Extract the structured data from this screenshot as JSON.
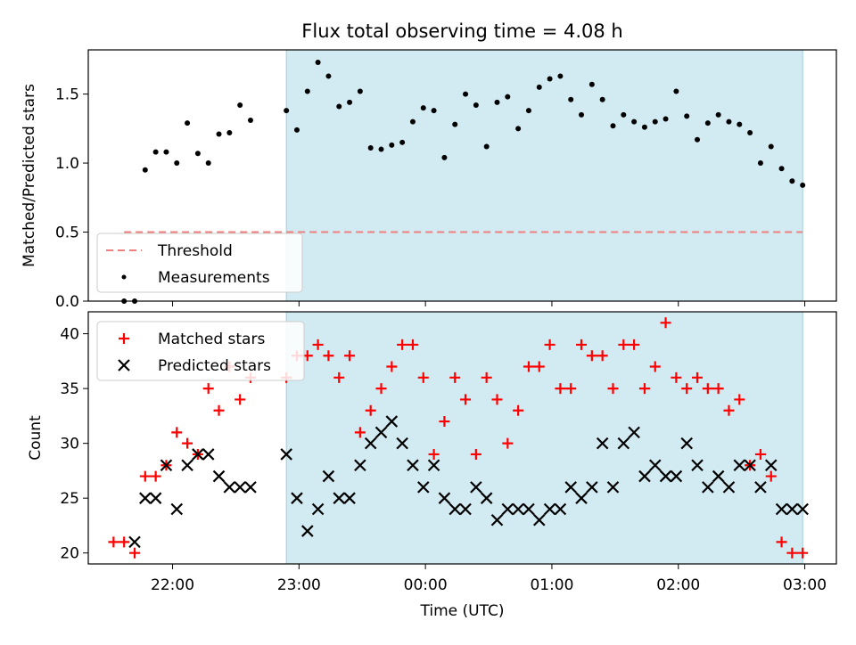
{
  "figure": {
    "title": "Flux total observing time = 4.08 h",
    "shade_color": "#add8e6",
    "shade_range": [
      "22:54",
      "02:59"
    ]
  },
  "chart_data": [
    {
      "type": "scatter",
      "xaxis": {
        "kind": "time",
        "range": [
          "21:20",
          "03:15"
        ],
        "ticks": [
          "22:00",
          "23:00",
          "00:00",
          "01:00",
          "02:00",
          "03:00"
        ],
        "ticklabels_visible": false
      },
      "ylabel": "Matched/Predicted stars",
      "ylim": [
        0,
        1.82
      ],
      "yticks": [
        0.0,
        0.5,
        1.0,
        1.5
      ],
      "ytick_labels": [
        "0.0",
        "0.5",
        "1.0",
        "1.5"
      ],
      "legend": {
        "placement": "lower-left",
        "entries": [
          {
            "label": "Threshold",
            "kind": "dashed-line",
            "color": "#f08080"
          },
          {
            "label": "Measurements",
            "kind": "dot",
            "color": "#000000"
          }
        ]
      },
      "series": [
        {
          "name": "Threshold",
          "kind": "hline",
          "y": 0.5,
          "x_range": [
            "21:37",
            "02:59"
          ],
          "color": "#f08080"
        },
        {
          "name": "Measurements",
          "kind": "dot",
          "color": "#000000",
          "x": [
            "21:37",
            "21:42",
            "21:47",
            "21:52",
            "21:57",
            "22:02",
            "22:07",
            "22:12",
            "22:17",
            "22:22",
            "22:27",
            "22:32",
            "22:37",
            "22:54",
            "22:59",
            "23:04",
            "23:09",
            "23:14",
            "23:19",
            "23:24",
            "23:29",
            "23:34",
            "23:39",
            "23:44",
            "23:49",
            "23:54",
            "23:59",
            "00:04",
            "00:09",
            "00:14",
            "00:19",
            "00:24",
            "00:29",
            "00:34",
            "00:39",
            "00:44",
            "00:49",
            "00:54",
            "00:59",
            "01:04",
            "01:09",
            "01:14",
            "01:19",
            "01:24",
            "01:29",
            "01:34",
            "01:39",
            "01:44",
            "01:49",
            "01:54",
            "01:59",
            "02:04",
            "02:09",
            "02:14",
            "02:19",
            "02:24",
            "02:29",
            "02:34",
            "02:39",
            "02:44",
            "02:49",
            "02:54",
            "02:59"
          ],
          "y": [
            0.0,
            0.0,
            0.95,
            1.08,
            1.08,
            1.0,
            1.29,
            1.07,
            1.0,
            1.21,
            1.22,
            1.42,
            1.31,
            1.38,
            1.24,
            1.52,
            1.73,
            1.63,
            1.41,
            1.44,
            1.52,
            1.11,
            1.1,
            1.13,
            1.15,
            1.3,
            1.4,
            1.38,
            1.04,
            1.28,
            1.5,
            1.42,
            1.12,
            1.44,
            1.48,
            1.25,
            1.38,
            1.55,
            1.61,
            1.63,
            1.46,
            1.35,
            1.57,
            1.46,
            1.27,
            1.35,
            1.3,
            1.26,
            1.3,
            1.32,
            1.52,
            1.34,
            1.17,
            1.29,
            1.35,
            1.3,
            1.28,
            1.22,
            1.0,
            1.12,
            0.96,
            0.87,
            0.84
          ]
        }
      ]
    },
    {
      "type": "scatter",
      "xaxis": {
        "kind": "time",
        "range": [
          "21:20",
          "03:15"
        ],
        "ticks": [
          "22:00",
          "23:00",
          "00:00",
          "01:00",
          "02:00",
          "03:00"
        ]
      },
      "xtick_labels": [
        "22:00",
        "23:00",
        "00:00",
        "01:00",
        "02:00",
        "03:00"
      ],
      "xlabel": "Time (UTC)",
      "ylabel": "Count",
      "ylim": [
        19,
        42
      ],
      "yticks": [
        20,
        25,
        30,
        35,
        40
      ],
      "ytick_labels": [
        "20",
        "25",
        "30",
        "35",
        "40"
      ],
      "legend": {
        "placement": "top-left",
        "entries": [
          {
            "label": "Matched stars",
            "kind": "plus",
            "color": "#ff0000"
          },
          {
            "label": "Predicted stars",
            "kind": "cross",
            "color": "#000000"
          }
        ]
      },
      "series": [
        {
          "name": "Matched stars",
          "kind": "plus",
          "color": "#ff0000",
          "x": [
            "21:32",
            "21:37",
            "21:42",
            "21:47",
            "21:52",
            "21:57",
            "22:02",
            "22:07",
            "22:12",
            "22:17",
            "22:22",
            "22:27",
            "22:32",
            "22:37",
            "22:54",
            "22:59",
            "23:04",
            "23:09",
            "23:14",
            "23:19",
            "23:24",
            "23:29",
            "23:34",
            "23:39",
            "23:44",
            "23:49",
            "23:54",
            "23:59",
            "00:04",
            "00:09",
            "00:14",
            "00:19",
            "00:24",
            "00:29",
            "00:34",
            "00:39",
            "00:44",
            "00:49",
            "00:54",
            "00:59",
            "01:04",
            "01:09",
            "01:14",
            "01:19",
            "01:24",
            "01:29",
            "01:34",
            "01:39",
            "01:44",
            "01:49",
            "01:54",
            "01:59",
            "02:04",
            "02:09",
            "02:14",
            "02:19",
            "02:24",
            "02:29",
            "02:34",
            "02:39",
            "02:44",
            "02:49",
            "02:54",
            "02:59"
          ],
          "y": [
            21,
            21,
            20,
            27,
            27,
            28,
            31,
            30,
            29,
            35,
            33,
            37,
            34,
            36,
            36,
            38,
            38,
            39,
            38,
            36,
            38,
            31,
            33,
            35,
            37,
            39,
            39,
            36,
            29,
            32,
            36,
            34,
            29,
            36,
            34,
            30,
            33,
            37,
            37,
            39,
            35,
            35,
            39,
            38,
            38,
            35,
            39,
            39,
            35,
            37,
            41,
            36,
            35,
            36,
            35,
            35,
            33,
            34,
            28,
            29,
            27,
            21,
            20,
            20
          ]
        },
        {
          "name": "Predicted stars",
          "kind": "cross",
          "color": "#000000",
          "x": [
            "21:42",
            "21:47",
            "21:52",
            "21:57",
            "22:02",
            "22:07",
            "22:12",
            "22:17",
            "22:22",
            "22:27",
            "22:32",
            "22:37",
            "22:54",
            "22:59",
            "23:04",
            "23:09",
            "23:14",
            "23:19",
            "23:24",
            "23:29",
            "23:34",
            "23:39",
            "23:44",
            "23:49",
            "23:54",
            "23:59",
            "00:04",
            "00:09",
            "00:14",
            "00:19",
            "00:24",
            "00:29",
            "00:34",
            "00:39",
            "00:44",
            "00:49",
            "00:54",
            "00:59",
            "01:04",
            "01:09",
            "01:14",
            "01:19",
            "01:24",
            "01:29",
            "01:34",
            "01:39",
            "01:44",
            "01:49",
            "01:54",
            "01:59",
            "02:04",
            "02:09",
            "02:14",
            "02:19",
            "02:24",
            "02:29",
            "02:34",
            "02:39",
            "02:44",
            "02:49",
            "02:54",
            "02:59"
          ],
          "y": [
            21,
            25,
            25,
            28,
            24,
            28,
            29,
            29,
            27,
            26,
            26,
            26,
            29,
            25,
            22,
            24,
            27,
            25,
            25,
            28,
            30,
            31,
            32,
            30,
            28,
            26,
            28,
            25,
            24,
            24,
            26,
            25,
            23,
            24,
            24,
            24,
            23,
            24,
            24,
            26,
            25,
            26,
            30,
            26,
            30,
            31,
            27,
            28,
            27,
            27,
            30,
            28,
            26,
            27,
            26,
            28,
            28,
            26,
            28,
            24,
            24,
            24
          ]
        }
      ]
    }
  ]
}
